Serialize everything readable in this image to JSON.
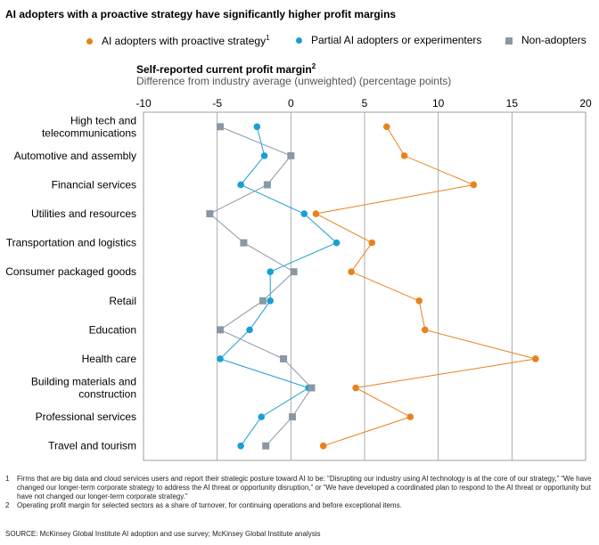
{
  "title": "AI adopters with a proactive strategy have significantly higher profit margins",
  "legend": [
    {
      "label": "AI adopters with proactive strategy",
      "sup": "1",
      "color": "#e8821e",
      "shape": "circle"
    },
    {
      "label": "Partial AI adopters or experimenters",
      "sup": "",
      "color": "#1a9ed4",
      "shape": "circle"
    },
    {
      "label": "Non-adopters",
      "sup": "",
      "color": "#8a98a6",
      "shape": "square"
    }
  ],
  "measure": {
    "title": "Self-reported current profit margin",
    "title_sup": "2",
    "subtitle": "Difference from industry average (unweighted) (percentage points)"
  },
  "chart_data": {
    "type": "scatter",
    "xlim": [
      -10,
      20
    ],
    "xticks": [
      -10,
      -5,
      0,
      5,
      10,
      15,
      20
    ],
    "grid": true,
    "categories": [
      "High tech and telecommunications",
      "Automotive and assembly",
      "Financial services",
      "Utilities and resources",
      "Transportation and logistics",
      "Consumer packaged goods",
      "Retail",
      "Education",
      "Health care",
      "Building materials and construction",
      "Professional services",
      "Travel and tourism"
    ],
    "category_lines": [
      [
        "High tech and",
        "telecommunications"
      ],
      [
        "Automotive and assembly"
      ],
      [
        "Financial services"
      ],
      [
        "Utilities and resources"
      ],
      [
        "Transportation and logistics"
      ],
      [
        "Consumer packaged goods"
      ],
      [
        "Retail"
      ],
      [
        "Education"
      ],
      [
        "Health care"
      ],
      [
        "Building materials and",
        "construction"
      ],
      [
        "Professional services"
      ],
      [
        "Travel and tourism"
      ]
    ],
    "series": [
      {
        "name": "AI adopters with proactive strategy",
        "color": "#e8821e",
        "shape": "circle",
        "values": [
          6.5,
          7.7,
          12.4,
          1.7,
          5.5,
          4.1,
          8.7,
          9.1,
          16.6,
          4.4,
          8.1,
          2.2
        ]
      },
      {
        "name": "Partial AI adopters or experimenters",
        "color": "#1a9ed4",
        "shape": "circle",
        "values": [
          -2.3,
          -1.8,
          -3.4,
          0.9,
          3.1,
          -1.4,
          -1.4,
          -2.8,
          -4.8,
          1.2,
          -2.0,
          -3.4
        ]
      },
      {
        "name": "Non-adopters",
        "color": "#8a98a6",
        "shape": "square",
        "values": [
          -4.8,
          0.0,
          -1.6,
          -5.5,
          -3.2,
          0.2,
          -1.9,
          -4.8,
          -0.5,
          1.4,
          0.1,
          -1.7
        ]
      }
    ]
  },
  "footnotes": [
    {
      "num": "1",
      "text": "Firms that are big data and cloud services users and report their strategic posture toward AI to be: “Disrupting our industry using AI technology is at the core of our strategy,” “We have changed our longer-term corporate strategy to address the AI threat or opportunity disruption,” or “We have developed a coordinated plan to respond to the AI threat or opportunity but have not changed our longer-term corporate strategy.”"
    },
    {
      "num": "2",
      "text": "Operating profit margin for selected sectors as a share of turnover, for continuing operations and before exceptional items."
    }
  ],
  "source": "SOURCE:  McKinsey Global Institute AI adoption and use survey; McKinsey Global Institute analysis"
}
